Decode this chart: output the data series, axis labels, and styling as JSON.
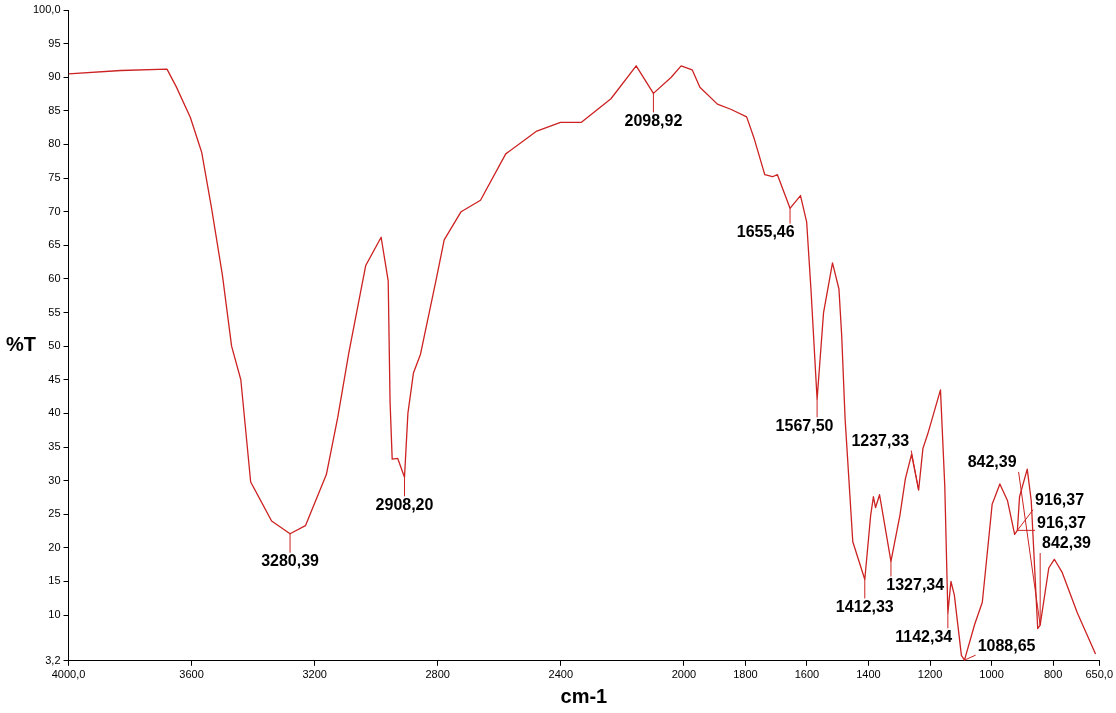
{
  "chart_data": {
    "type": "line",
    "xlabel": "cm-1",
    "ylabel": "%T",
    "xlim": [
      4000,
      650
    ],
    "xticks": [
      {
        "value": 4000,
        "label": "4000,0"
      },
      3600,
      3200,
      2800,
      2400,
      2000,
      1800,
      1600,
      1400,
      1200,
      1000,
      800,
      {
        "value": 650,
        "label": "650,0"
      }
    ],
    "ylim": [
      3.2,
      100
    ],
    "yticks": [
      {
        "value": 3.2,
        "label": "3,2"
      },
      10,
      15,
      20,
      25,
      30,
      35,
      40,
      45,
      50,
      55,
      60,
      65,
      70,
      75,
      80,
      85,
      90,
      95,
      {
        "value": 100,
        "label": "100,0"
      }
    ],
    "grid": false,
    "legend": false,
    "marker": "none",
    "line_style": "solid",
    "series": [
      {
        "color": "#cc2222",
        "x": [
          4000,
          3830,
          3680,
          3650,
          3604,
          3567,
          3535,
          3500,
          3470,
          3440,
          3408,
          3340,
          3280,
          3230,
          3162,
          3125,
          3089,
          3034,
          2984,
          2961,
          2955,
          2948,
          2930,
          2908,
          2897,
          2879,
          2856,
          2806,
          2779,
          2724,
          2661,
          2579,
          2478,
          2401,
          2333,
          2237,
          2155,
          2099,
          2041,
          2009,
          1973,
          1948,
          1891,
          1846,
          1796,
          1771,
          1737,
          1712,
          1696,
          1655,
          1621,
          1601,
          1587,
          1567,
          1546,
          1517,
          1496,
          1487,
          1476,
          1451,
          1412,
          1393,
          1384,
          1377,
          1364,
          1327,
          1298,
          1280,
          1260,
          1237,
          1223,
          1207,
          1166,
          1152,
          1142,
          1132,
          1121,
          1098,
          1088,
          1055,
          1030,
          998,
          973,
          948,
          925,
          916,
          909,
          884,
          871,
          850,
          842,
          814,
          796,
          771,
          721,
          662
        ],
        "values": [
          90.5,
          91,
          91.2,
          88.6,
          84,
          78.8,
          70.5,
          60.6,
          50,
          45,
          29.8,
          24,
          22.1,
          23.3,
          30.9,
          39.4,
          49,
          62,
          66.2,
          59.7,
          41.8,
          33.2,
          33.3,
          30.5,
          40,
          46,
          48.8,
          59.7,
          65.8,
          70,
          71.7,
          78.6,
          82,
          83.3,
          83.3,
          86.8,
          91.7,
          87.6,
          90,
          91.7,
          91.1,
          88.5,
          86,
          85.2,
          84.1,
          80.8,
          75.5,
          75.2,
          75.5,
          70.5,
          72.4,
          68.5,
          58.5,
          42.1,
          55,
          62.4,
          58.5,
          51.5,
          39.2,
          20.9,
          15.3,
          24.8,
          27.6,
          26,
          27.9,
          18,
          24.8,
          30.3,
          33.9,
          28.6,
          34.8,
          37,
          43.5,
          29.2,
          10.3,
          15,
          13,
          4,
          3.3,
          8.6,
          11.9,
          26.5,
          29.5,
          27,
          22,
          22.6,
          27.6,
          31.7,
          27,
          8,
          8.5,
          17,
          18.3,
          16.4,
          10.3,
          4.2
        ]
      }
    ],
    "annotations": [
      {
        "text": "2098,92",
        "x": 2099,
        "y": 87.6
      },
      {
        "text": "3280,39",
        "x": 3280,
        "y": 22.1
      },
      {
        "text": "2908,20",
        "x": 2908,
        "y": 30.5
      },
      {
        "text": "1655,46",
        "x": 1655,
        "y": 70.5
      },
      {
        "text": "1567,50",
        "x": 1567,
        "y": 42.1
      },
      {
        "text": "1412,33",
        "x": 1412,
        "y": 15.3
      },
      {
        "text": "1327,34",
        "x": 1327,
        "y": 18
      },
      {
        "text": "1237,33",
        "x": 1237,
        "y": 28.6
      },
      {
        "text": "1142,34",
        "x": 1142,
        "y": 10.3
      },
      {
        "text": "1088,65",
        "x": 1088,
        "y": 3.3
      },
      {
        "text": "916,37",
        "x": 916,
        "y": 22.6
      },
      {
        "text": "916,37",
        "x": 916,
        "y": 22.6
      },
      {
        "text": "842,39",
        "x": 842,
        "y": 8.5
      },
      {
        "text": "842,39",
        "x": 842,
        "y": 8.5
      }
    ]
  }
}
